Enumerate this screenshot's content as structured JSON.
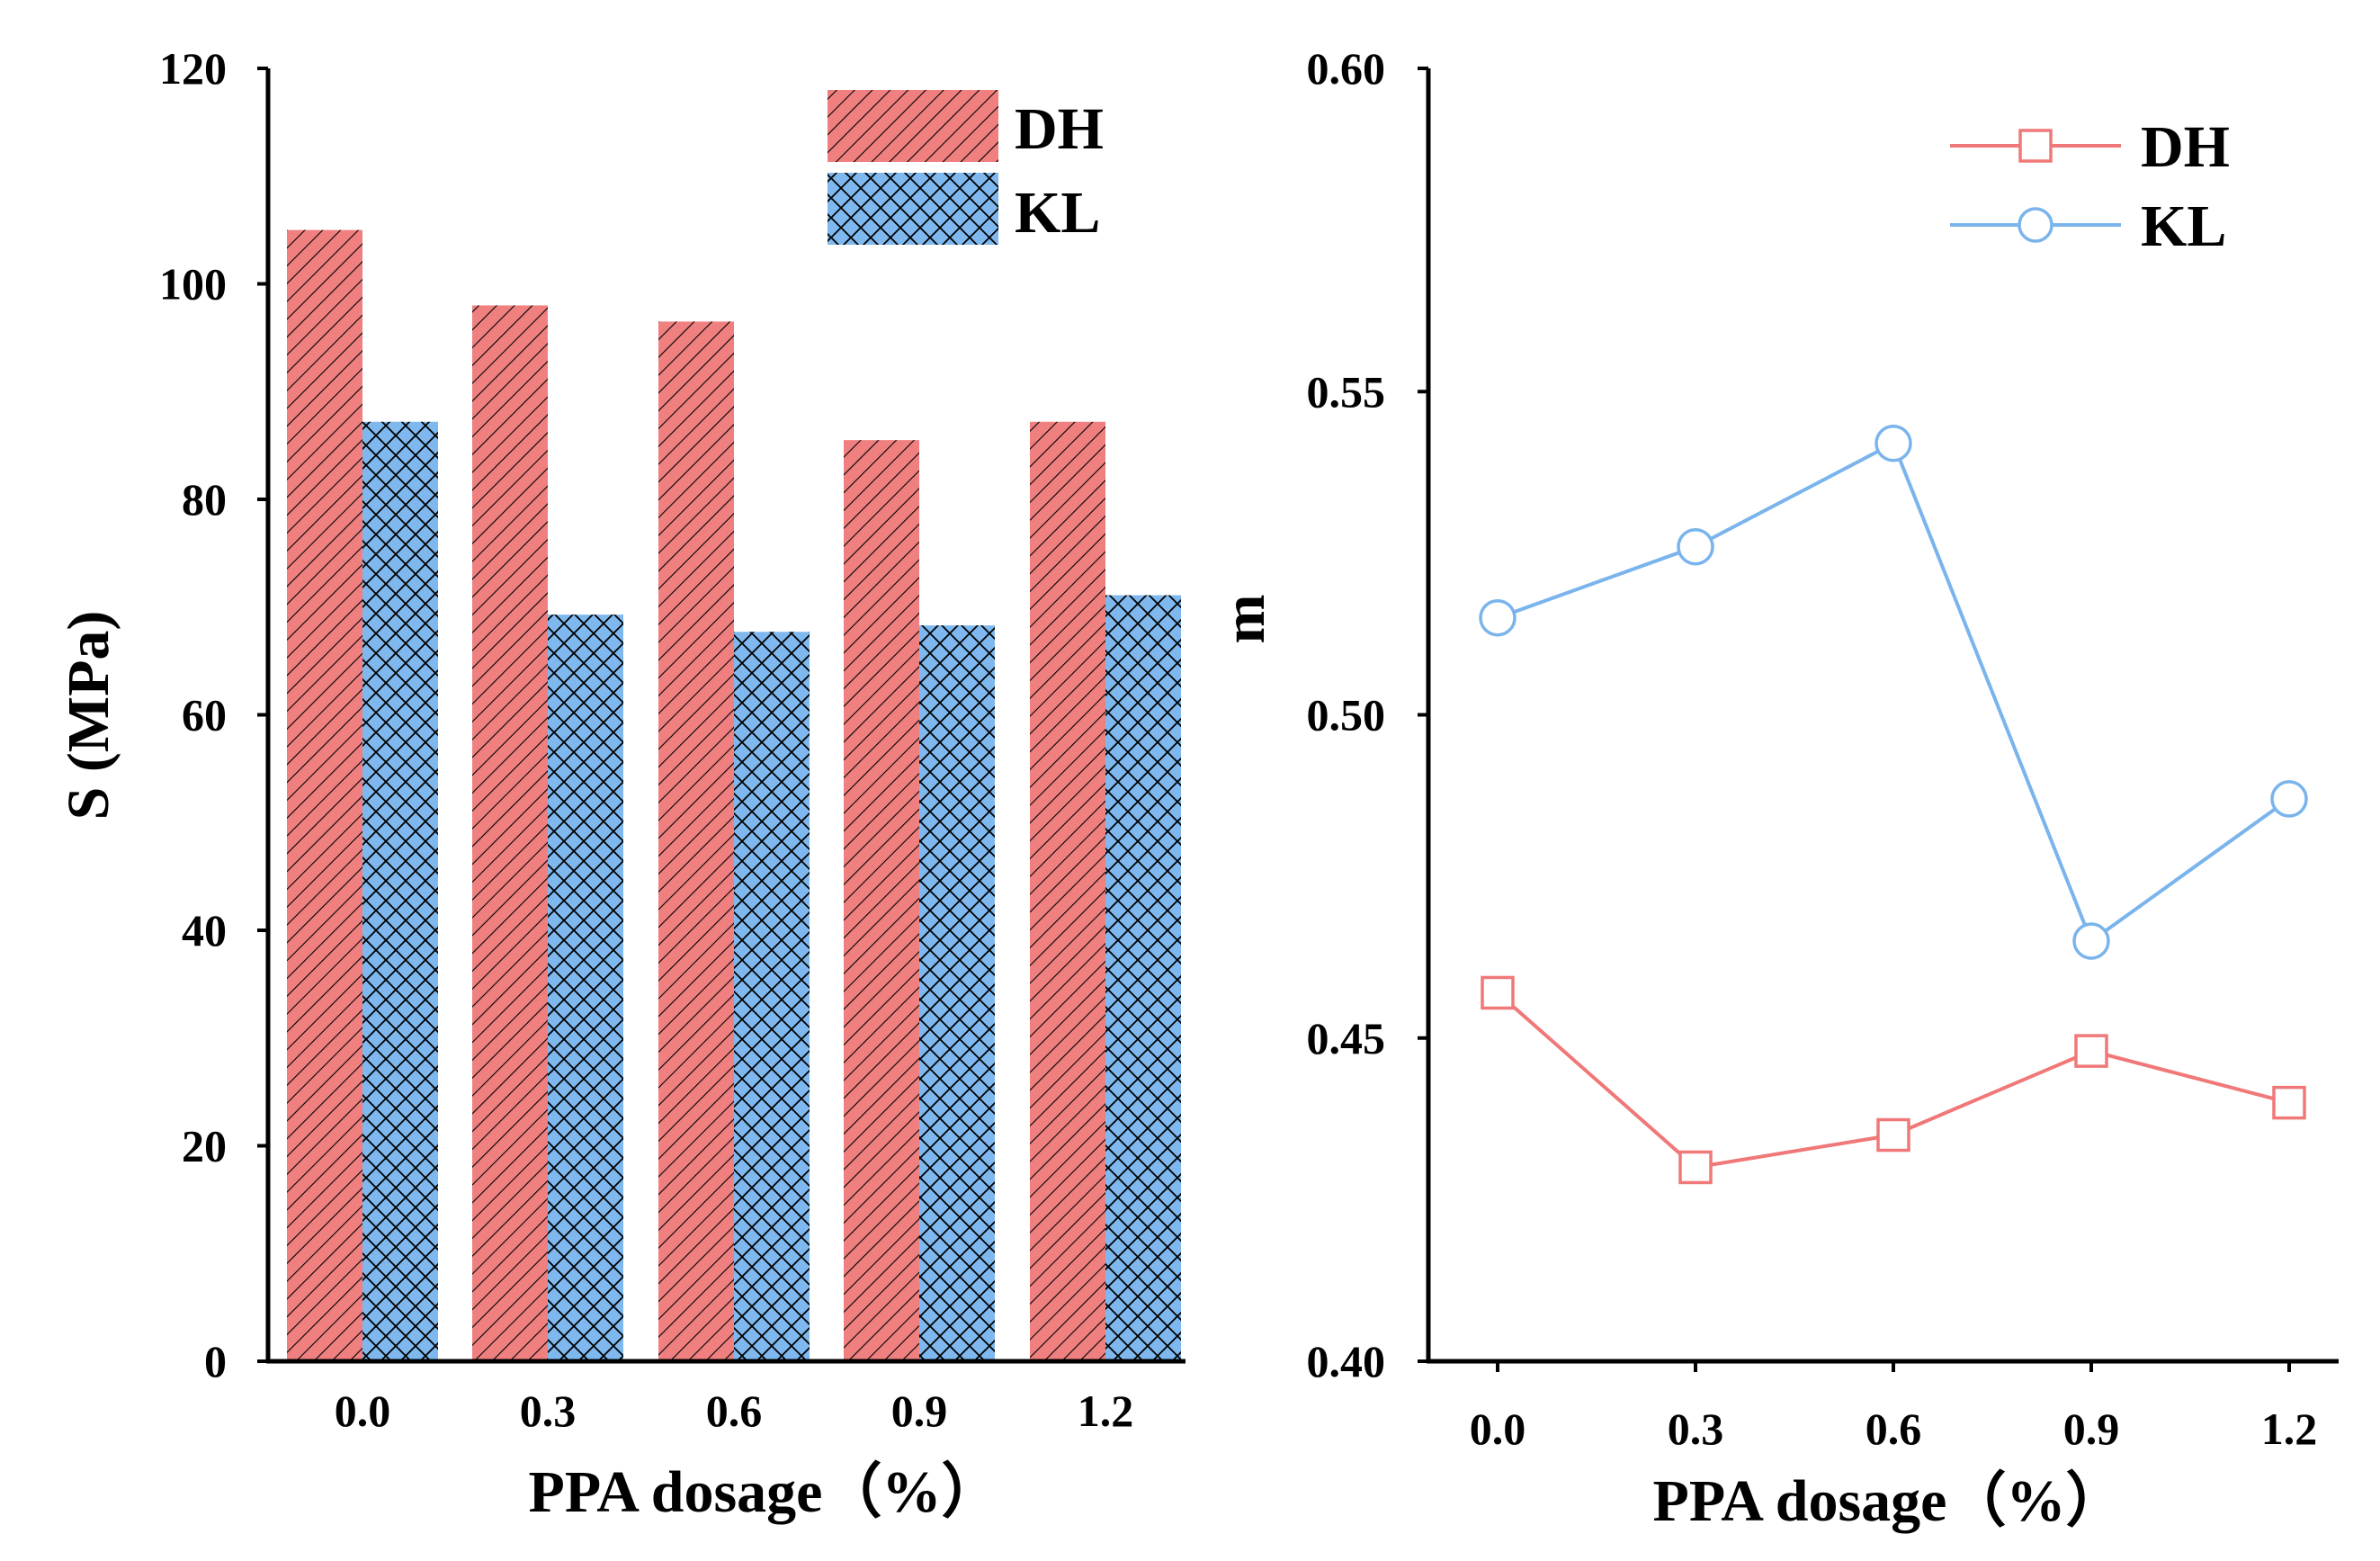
{
  "colors": {
    "dh": "#F08080",
    "kl": "#7FB8EE",
    "dh_line": "#F07878",
    "kl_line": "#7AB4EC",
    "axis": "#000000"
  },
  "chart_data": [
    {
      "type": "bar",
      "categories": [
        "0.0",
        "0.3",
        "0.6",
        "0.9",
        "1.2"
      ],
      "series": [
        {
          "name": "DH",
          "values": [
            105,
            98,
            96.5,
            85.5,
            87.2
          ],
          "pattern": "diagonal-hatch"
        },
        {
          "name": "KL",
          "values": [
            87.2,
            69.3,
            67.7,
            68.3,
            71.1
          ],
          "pattern": "cross-hatch"
        }
      ],
      "title": "",
      "xlabel": "PPA dosage（%）",
      "ylabel": "S (MPa)",
      "ylim": [
        0,
        120
      ],
      "yticks": [
        "0",
        "20",
        "40",
        "60",
        "80",
        "100",
        "120"
      ],
      "legend": {
        "position": "top-right",
        "entries": [
          "DH",
          "KL"
        ]
      },
      "grid": false
    },
    {
      "type": "line",
      "categories": [
        "0.0",
        "0.3",
        "0.6",
        "0.9",
        "1.2"
      ],
      "series": [
        {
          "name": "DH",
          "values": [
            0.457,
            0.43,
            0.435,
            0.448,
            0.44
          ],
          "marker": "square"
        },
        {
          "name": "KL",
          "values": [
            0.515,
            0.526,
            0.542,
            0.465,
            0.487
          ],
          "marker": "circle"
        }
      ],
      "title": "",
      "xlabel": "PPA dosage（%）",
      "ylabel": "m",
      "ylim": [
        0.4,
        0.6
      ],
      "yticks": [
        "0.40",
        "0.45",
        "0.50",
        "0.55",
        "0.60"
      ],
      "legend": {
        "position": "top-right",
        "entries": [
          "DH",
          "KL"
        ]
      },
      "grid": false
    }
  ]
}
